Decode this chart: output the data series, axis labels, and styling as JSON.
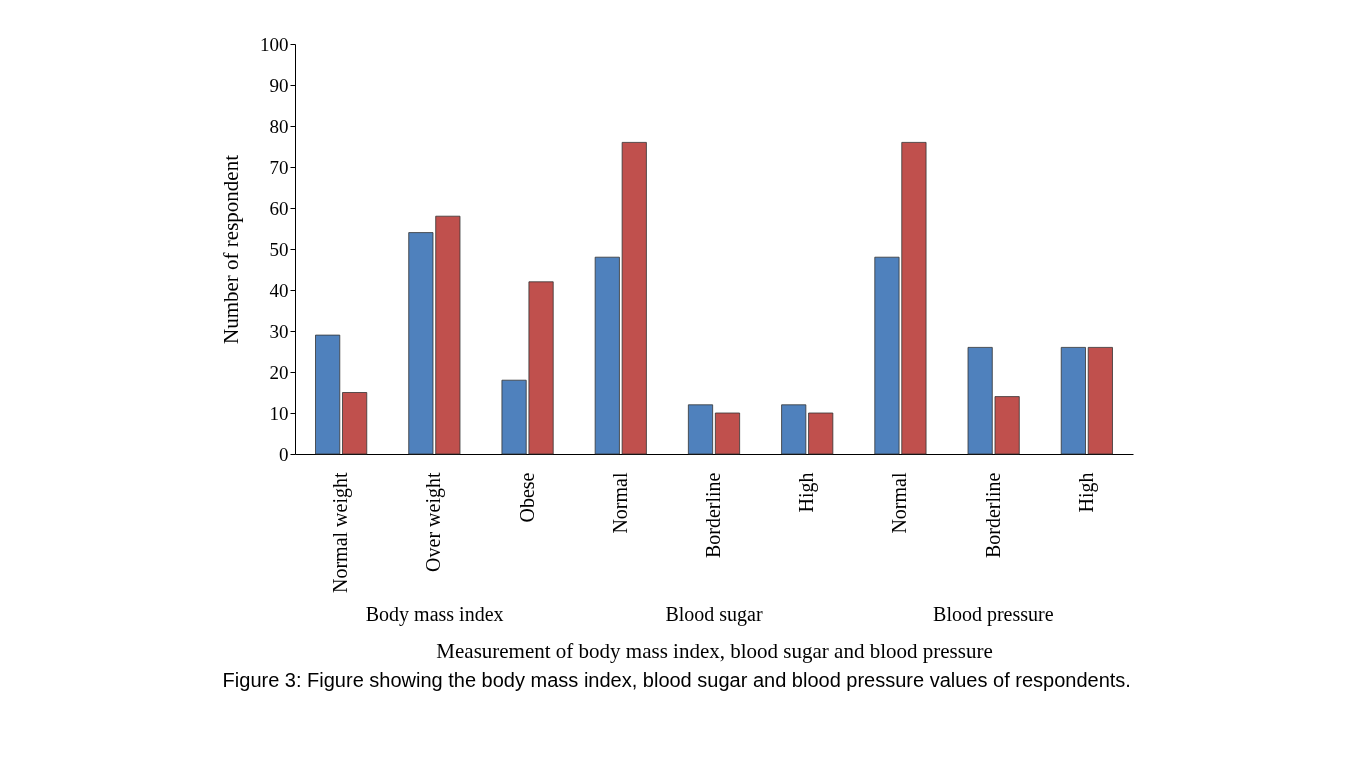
{
  "chart_data": {
    "type": "bar",
    "title": "Figure 3: Figure showing the body mass index, blood sugar and blood pressure values of respondents.",
    "xlabel": "Measurement of body mass index, blood sugar and blood pressure",
    "ylabel": "Number of respondent",
    "categories": [
      "Normal weight",
      "Over weight",
      "Obese",
      "Normal",
      "Borderline",
      "High",
      "Normal",
      "Borderline",
      "High"
    ],
    "series": [
      {
        "color": "#4f81bd",
        "values": [
          29,
          54,
          18,
          48,
          12,
          12,
          48,
          26,
          26
        ]
      },
      {
        "color": "#c0504d",
        "values": [
          15,
          58,
          42,
          76,
          10,
          10,
          76,
          14,
          26
        ]
      }
    ],
    "annotations": [
      "Body mass index",
      "Blood sugar",
      "Blood pressure"
    ],
    "ylim": [
      0,
      100
    ],
    "yticks": [
      0,
      10,
      20,
      30,
      40,
      50,
      60,
      70,
      80,
      90,
      100
    ],
    "grid": false,
    "legend": false
  }
}
